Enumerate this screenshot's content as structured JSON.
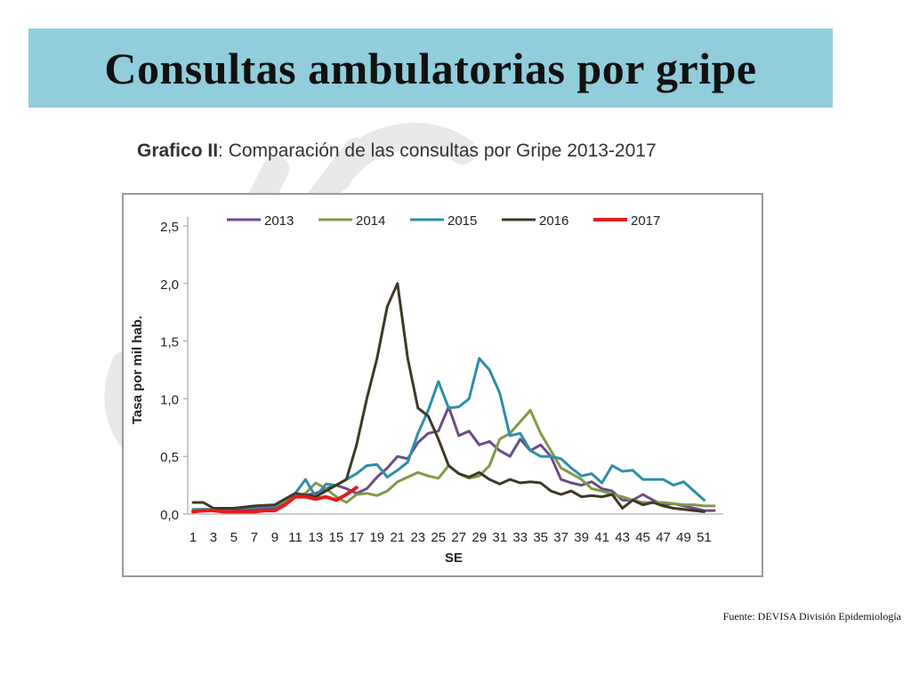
{
  "slide": {
    "title": "Consultas ambulatorias por gripe",
    "source": "Fuente: DEVISA División Epidemiología"
  },
  "chart_heading": {
    "bold": "Grafico II",
    "rest": ": Comparación de las consultas por Gripe 2013-2017"
  },
  "colors": {
    "banner": "#92cddc",
    "2013": "#6b4c8c",
    "2014": "#7f9a48",
    "2015": "#2e8ea8",
    "2016": "#3f3826",
    "2017": "#e41c1c"
  },
  "chart_data": {
    "type": "line",
    "xlabel": "SE",
    "ylabel": "Tasa por mil hab.",
    "ylim": [
      0,
      2.5
    ],
    "yticks": [
      "0,0",
      "0,5",
      "1,0",
      "1,5",
      "2,0",
      "2,5"
    ],
    "xlim": [
      1,
      52
    ],
    "xticks": [
      "1",
      "3",
      "5",
      "7",
      "9",
      "11",
      "13",
      "15",
      "17",
      "19",
      "21",
      "23",
      "25",
      "27",
      "29",
      "31",
      "33",
      "35",
      "37",
      "39",
      "41",
      "43",
      "45",
      "47",
      "49",
      "51"
    ],
    "legend_position": "top",
    "grid": false,
    "series": [
      {
        "name": "2013",
        "color": "#6b4c8c",
        "width": 3,
        "x": [
          1,
          3,
          5,
          7,
          9,
          11,
          13,
          14,
          15,
          16,
          17,
          18,
          19,
          20,
          21,
          22,
          23,
          24,
          25,
          26,
          27,
          28,
          29,
          30,
          31,
          32,
          33,
          34,
          35,
          36,
          37,
          38,
          39,
          40,
          41,
          42,
          43,
          44,
          45,
          46,
          47,
          48,
          49,
          50,
          51,
          52
        ],
        "y": [
          0.02,
          0.03,
          0.03,
          0.04,
          0.05,
          0.15,
          0.18,
          0.22,
          0.25,
          0.22,
          0.18,
          0.22,
          0.32,
          0.4,
          0.5,
          0.48,
          0.62,
          0.7,
          0.72,
          0.93,
          0.68,
          0.72,
          0.6,
          0.63,
          0.55,
          0.5,
          0.65,
          0.55,
          0.6,
          0.5,
          0.3,
          0.27,
          0.25,
          0.28,
          0.22,
          0.2,
          0.12,
          0.12,
          0.17,
          0.12,
          0.08,
          0.09,
          0.07,
          0.05,
          0.03,
          0.03
        ]
      },
      {
        "name": "2014",
        "color": "#7f9a48",
        "width": 3,
        "x": [
          1,
          3,
          5,
          7,
          9,
          11,
          12,
          13,
          14,
          15,
          16,
          17,
          18,
          19,
          20,
          21,
          22,
          23,
          24,
          25,
          26,
          27,
          28,
          29,
          30,
          31,
          32,
          33,
          34,
          35,
          36,
          37,
          38,
          39,
          40,
          41,
          42,
          43,
          44,
          45,
          46,
          47,
          48,
          49,
          50,
          51,
          52
        ],
        "y": [
          0.03,
          0.04,
          0.05,
          0.06,
          0.07,
          0.15,
          0.18,
          0.27,
          0.22,
          0.15,
          0.1,
          0.17,
          0.18,
          0.16,
          0.2,
          0.28,
          0.32,
          0.36,
          0.33,
          0.31,
          0.42,
          0.35,
          0.31,
          0.33,
          0.42,
          0.65,
          0.7,
          0.8,
          0.9,
          0.7,
          0.55,
          0.4,
          0.35,
          0.3,
          0.22,
          0.2,
          0.17,
          0.15,
          0.12,
          0.1,
          0.1,
          0.1,
          0.09,
          0.08,
          0.08,
          0.07,
          0.07
        ]
      },
      {
        "name": "2015",
        "color": "#2e8ea8",
        "width": 3,
        "x": [
          1,
          3,
          5,
          7,
          9,
          11,
          12,
          13,
          14,
          15,
          16,
          17,
          18,
          19,
          20,
          21,
          22,
          23,
          24,
          25,
          26,
          27,
          28,
          29,
          30,
          31,
          32,
          33,
          34,
          35,
          36,
          37,
          38,
          39,
          40,
          41,
          42,
          43,
          44,
          45,
          46,
          47,
          48,
          49,
          50,
          51
        ],
        "y": [
          0.04,
          0.04,
          0.05,
          0.06,
          0.07,
          0.18,
          0.3,
          0.15,
          0.26,
          0.25,
          0.3,
          0.35,
          0.42,
          0.43,
          0.32,
          0.38,
          0.45,
          0.7,
          0.9,
          1.15,
          0.92,
          0.93,
          1.0,
          1.35,
          1.25,
          1.05,
          0.68,
          0.7,
          0.55,
          0.5,
          0.5,
          0.48,
          0.4,
          0.33,
          0.35,
          0.27,
          0.42,
          0.37,
          0.38,
          0.3,
          0.3,
          0.3,
          0.25,
          0.28,
          0.2,
          0.12
        ]
      },
      {
        "name": "2016",
        "color": "#3f3826",
        "width": 3,
        "x": [
          1,
          2,
          3,
          5,
          7,
          9,
          11,
          13,
          15,
          16,
          17,
          18,
          19,
          20,
          21,
          22,
          23,
          24,
          25,
          26,
          27,
          28,
          29,
          30,
          31,
          32,
          33,
          34,
          35,
          36,
          37,
          38,
          39,
          40,
          41,
          42,
          43,
          44,
          45,
          46,
          47,
          48,
          49,
          50,
          51
        ],
        "y": [
          0.1,
          0.1,
          0.05,
          0.05,
          0.07,
          0.08,
          0.18,
          0.15,
          0.25,
          0.3,
          0.6,
          1.0,
          1.35,
          1.8,
          2.0,
          1.35,
          0.92,
          0.85,
          0.65,
          0.42,
          0.35,
          0.32,
          0.36,
          0.3,
          0.26,
          0.3,
          0.27,
          0.28,
          0.27,
          0.2,
          0.17,
          0.2,
          0.15,
          0.16,
          0.15,
          0.17,
          0.05,
          0.12,
          0.08,
          0.1,
          0.07,
          0.05,
          0.04,
          0.03,
          0.02
        ]
      },
      {
        "name": "2017",
        "color": "#e41c1c",
        "width": 4,
        "x": [
          1,
          2,
          3,
          4,
          5,
          6,
          7,
          8,
          9,
          10,
          11,
          12,
          13,
          14,
          15,
          16,
          17
        ],
        "y": [
          0.02,
          0.03,
          0.03,
          0.02,
          0.02,
          0.02,
          0.02,
          0.03,
          0.03,
          0.08,
          0.15,
          0.15,
          0.13,
          0.15,
          0.12,
          0.17,
          0.23
        ]
      }
    ]
  }
}
